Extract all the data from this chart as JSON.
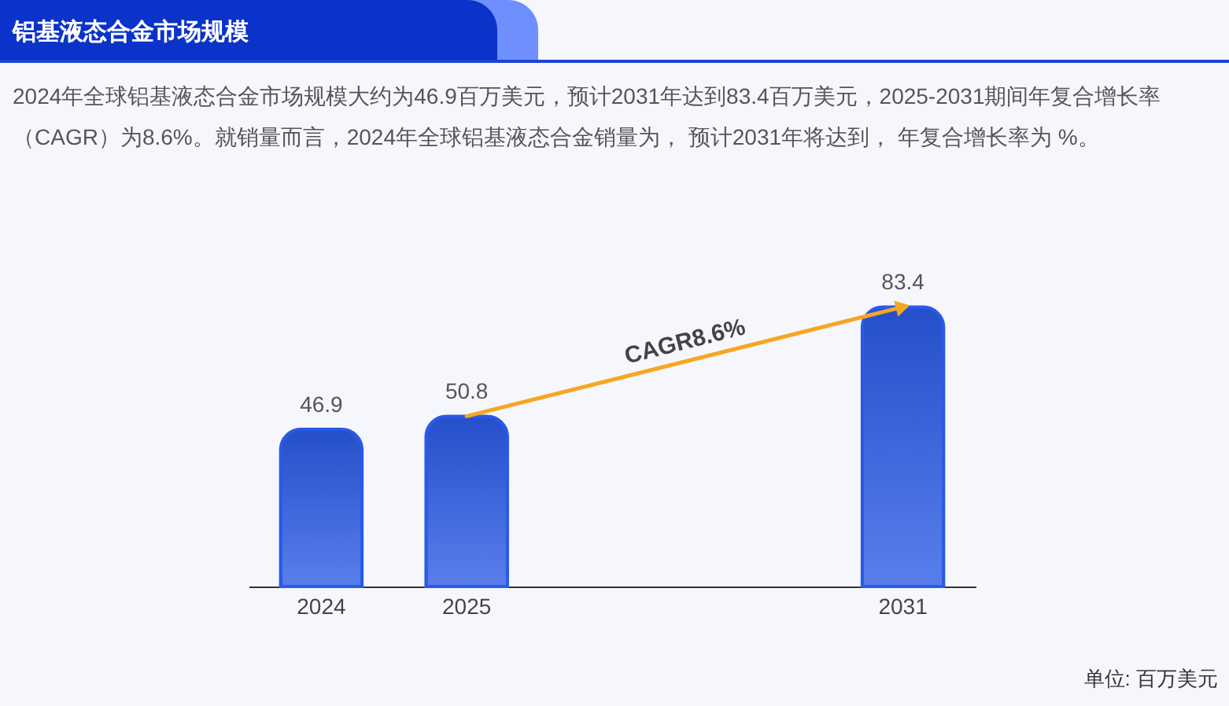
{
  "chart_data": {
    "type": "bar",
    "title": "铝基液态合金市场规模",
    "subtitle": "2024年全球铝基液态合金市场规模大约为46.9百万美元，预计2031年达到83.4百万美元，2025-2031期间年复合增长率（CAGR）为8.6%。就销量而言，2024年全球铝基液态合金销量为， 预计2031年将达到， 年复合增长率为 %。",
    "categories": [
      "2024",
      "2025",
      null,
      null,
      "2031"
    ],
    "values": [
      46.9,
      50.8,
      null,
      null,
      83.4
    ],
    "color": "#2a5ae6",
    "data_labels": true,
    "tick_labels": "x",
    "grid": false,
    "annotations": [
      "CAGR8.6%",
      "单位: 百万美元"
    ]
  }
}
